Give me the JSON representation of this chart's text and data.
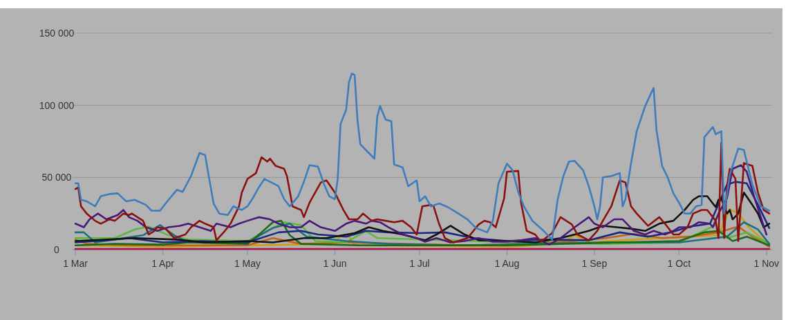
{
  "chart_data": {
    "type": "line",
    "xlim": [
      "--02-28",
      "--11-03"
    ],
    "ylim": [
      0,
      150000
    ],
    "xticks": [
      {
        "value": "--03-01",
        "label": "1 Mar"
      },
      {
        "value": "--04-01",
        "label": "1 Apr"
      },
      {
        "value": "--05-01",
        "label": "1 May"
      },
      {
        "value": "--06-01",
        "label": "1 Jun"
      },
      {
        "value": "--07-01",
        "label": "1 Jul"
      },
      {
        "value": "--08-01",
        "label": "1 Aug"
      },
      {
        "value": "--09-01",
        "label": "1 Sep"
      },
      {
        "value": "--10-01",
        "label": "1 Oct"
      },
      {
        "value": "--11-01",
        "label": "1 Nov"
      }
    ],
    "yticks": [
      {
        "value": 0,
        "label": "0"
      },
      {
        "value": 50000,
        "label": "50 000"
      },
      {
        "value": 100000,
        "label": "100 000"
      },
      {
        "value": 150000,
        "label": "150 000"
      }
    ],
    "grid": "y",
    "line_style": "solid",
    "series": [
      {
        "color": "#b01040",
        "x": [
          "--03-01",
          "--05-01",
          "--07-01",
          "--09-01",
          "--11-02"
        ],
        "values": [
          500,
          500,
          500,
          500,
          500
        ]
      },
      {
        "color": "#c8a018",
        "x": [
          "--03-01",
          "--04-01",
          "--05-01",
          "--06-01",
          "--06-03",
          "--06-06",
          "--06-08",
          "--07-01",
          "--08-01",
          "--08-20",
          "--08-25",
          "--08-30",
          "--09-15",
          "--10-01",
          "--10-15",
          "--10-19",
          "--10-22",
          "--10-26",
          "--11-02"
        ],
        "values": [
          3000,
          2000,
          3000,
          4000,
          10000,
          9000,
          3000,
          null,
          2000,
          4000,
          10000,
          5000,
          7000,
          null,
          10000,
          28000,
          25000,
          15000,
          3000
        ]
      },
      {
        "color": "#c0641c",
        "x": [
          "--03-01",
          "--03-05",
          "--03-20",
          "--04-10",
          "--05-01",
          "--05-10",
          "--05-20",
          "--06-05",
          "--06-25",
          "--07-20",
          "--08-10",
          "--08-25",
          "--09-05",
          "--09-15",
          "--09-25",
          "--10-05",
          "--10-15",
          "--10-22",
          "--10-27",
          "--11-02"
        ],
        "values": [
          7000,
          4000,
          3000,
          null,
          3000,
          8000,
          4000,
          5000,
          4000,
          3000,
          4500,
          6000,
          8000,
          11000,
          8000,
          9000,
          12000,
          16000,
          9000,
          2000
        ]
      },
      {
        "color": "#5cb83c",
        "x": [
          "--03-01",
          "--03-15",
          "--03-22",
          "--03-27",
          "--04-03",
          "--04-10",
          "--05-01",
          "--05-10",
          "--05-14",
          "--05-20",
          "--05-25",
          "--06-05",
          "--06-12",
          "--06-16",
          "--07-05",
          "--08-05",
          "--09-05",
          "--10-01",
          "--10-14",
          "--10-18",
          "--10-25",
          "--11-02"
        ],
        "values": [
          8000,
          8000,
          14000,
          16000,
          10000,
          7000,
          6000,
          15000,
          19000,
          17000,
          6000,
          5000,
          13000,
          8000,
          null,
          5000,
          4000,
          5000,
          17000,
          8000,
          12000,
          4000
        ]
      },
      {
        "color": "#1e6e80",
        "x": [
          "--03-01",
          "--03-04",
          "--03-08",
          "--03-25",
          "--03-31",
          "--04-05",
          "--04-10",
          "--05-01",
          "--05-10",
          "--05-16",
          "--05-22",
          "--06-05",
          "--06-20",
          "--07-15",
          "--08-10",
          "--09-05",
          "--10-01",
          "--10-18",
          "--10-24",
          "--10-29",
          "--11-02"
        ],
        "values": [
          12000,
          12000,
          5000,
          10000,
          17000,
          10000,
          5000,
          5000,
          15000,
          18000,
          9000,
          6000,
          4000,
          3000,
          4000,
          5000,
          5000,
          9000,
          19000,
          14000,
          4000
        ]
      },
      {
        "color": "#1a6a1a",
        "x": [
          "--03-01",
          "--03-15",
          "--04-01",
          "--04-10",
          "--05-01",
          "--05-06",
          "--05-10",
          "--05-13",
          "--05-16",
          "--05-20",
          "--06-10",
          "--07-01",
          "--08-01",
          "--08-20",
          "--09-10",
          "--10-01",
          "--10-10",
          "--10-15",
          "--10-20",
          "--10-25",
          "--11-02"
        ],
        "values": [
          3000,
          4000,
          3500,
          5000,
          4000,
          12000,
          19000,
          20000,
          10000,
          4000,
          3000,
          3000,
          3000,
          4000,
          5000,
          6000,
          12000,
          13000,
          6000,
          9000,
          3000
        ]
      },
      {
        "color": "#1a2a80",
        "x": [
          "--03-01",
          "--03-12",
          "--03-20",
          "--04-01",
          "--04-15",
          "--05-01",
          "--05-12",
          "--05-20",
          "--05-26",
          "--06-05",
          "--06-12",
          "--06-20",
          "--07-01",
          "--07-10",
          "--07-20",
          "--08-01",
          "--08-15",
          "--08-30",
          "--09-10",
          "--09-20",
          "--09-28",
          "--10-05",
          "--10-12",
          "--10-18",
          "--10-21",
          "--10-25",
          "--10-29",
          "--11-02"
        ],
        "values": [
          5000,
          6500,
          8000,
          5000,
          6000,
          5000,
          12000,
          13000,
          10500,
          9000,
          13000,
          12000,
          11500,
          12000,
          8000,
          6000,
          7000,
          6500,
          12000,
          9000,
          12000,
          16000,
          18000,
          45000,
          47000,
          46000,
          31000,
          15000
        ]
      },
      {
        "color": "#111111",
        "x": [
          "--03-01",
          "--03-22",
          "--04-06",
          "--04-16",
          "--05-01",
          "--05-10",
          "--05-21",
          "--05-29",
          "--06-08",
          "--06-13",
          "--06-18",
          "--06-25",
          "--07-03",
          "--07-07",
          "--07-12",
          "--07-17",
          "--07-22",
          "--08-01",
          "--08-11",
          "--08-20",
          "--08-30",
          "--09-04",
          "--09-09",
          "--09-14",
          "--09-19",
          "--09-24",
          "--09-29",
          "--10-03",
          "--10-06",
          "--10-08",
          "--10-11",
          "--10-14",
          "--10-15",
          "--10-16",
          "--10-18",
          "--10-19",
          "--10-20",
          "--10-22",
          "--10-24",
          "--10-27",
          "--10-29",
          "--10-31",
          "--11-02"
        ],
        "values": [
          6000,
          8000,
          7000,
          5000,
          6000,
          5000,
          8000,
          8000,
          11500,
          15500,
          13000,
          10500,
          6500,
          10500,
          16500,
          10500,
          6500,
          6000,
          5000,
          8000,
          13000,
          16500,
          15500,
          14500,
          13000,
          18000,
          20000,
          27500,
          34500,
          37000,
          37000,
          29500,
          34500,
          35500,
          25000,
          27500,
          21000,
          25000,
          39500,
          31000,
          25000,
          15500,
          18000
        ]
      },
      {
        "color": "#4a1878",
        "x": [
          "--03-01",
          "--03-04",
          "--03-06",
          "--03-09",
          "--03-12",
          "--03-16",
          "--03-18",
          "--03-20",
          "--03-23",
          "--03-26",
          "--03-30",
          "--04-03",
          "--04-07",
          "--04-10",
          "--04-14",
          "--04-18",
          "--04-20",
          "--04-25",
          "--04-28",
          "--05-01",
          "--05-05",
          "--05-09",
          "--05-12",
          "--05-16",
          "--05-20",
          "--05-23",
          "--05-27",
          "--06-01",
          "--06-05",
          "--06-08",
          "--06-12",
          "--06-14",
          "--06-17",
          "--06-20",
          "--06-25",
          "--06-30",
          "--07-03",
          "--07-07",
          "--07-12",
          "--07-17",
          "--07-22",
          "--07-27",
          "--08-01",
          "--08-06",
          "--08-11",
          "--08-16",
          "--08-20",
          "--08-25",
          "--08-30",
          "--09-01",
          "--09-04",
          "--09-08",
          "--09-11",
          "--09-15",
          "--09-19",
          "--09-22",
          "--09-26",
          "--09-29",
          "--10-01",
          "--10-05",
          "--10-08",
          "--10-12",
          "--10-13",
          "--10-15",
          "--10-18",
          "--10-20",
          "--10-23",
          "--10-25",
          "--10-28",
          "--11-01"
        ],
        "values": [
          18000,
          15500,
          21000,
          25000,
          21000,
          24000,
          27500,
          22500,
          20000,
          15500,
          13000,
          15500,
          16500,
          18000,
          15500,
          13000,
          18000,
          15500,
          18000,
          20000,
          22500,
          21000,
          18000,
          15500,
          15500,
          20000,
          15500,
          13000,
          18000,
          20000,
          18000,
          20000,
          19000,
          15500,
          10500,
          8000,
          5500,
          8000,
          5000,
          6000,
          8000,
          5500,
          5500,
          6500,
          8000,
          3500,
          8000,
          15500,
          22500,
          18000,
          15500,
          21000,
          21000,
          13000,
          10500,
          13000,
          10500,
          13000,
          15500,
          15500,
          19000,
          18000,
          15500,
          25000,
          35500,
          56000,
          58500,
          54000,
          34500,
          10500
        ]
      },
      {
        "color": "#8b1010",
        "x": [
          "--03-01",
          "--03-02",
          "--03-03",
          "--03-05",
          "--03-08",
          "--03-10",
          "--03-13",
          "--03-15",
          "--03-18",
          "--03-20",
          "--03-21",
          "--03-25",
          "--03-27",
          "--03-29",
          "--03-30",
          "--04-02",
          "--04-05",
          "--04-09",
          "--04-11",
          "--04-14",
          "--04-16",
          "--04-19",
          "--04-20",
          "--04-23",
          "--04-25",
          "--04-28",
          "--04-29",
          "--05-01",
          "--05-04",
          "--05-06",
          "--05-08",
          "--05-09",
          "--05-11",
          "--05-14",
          "--05-15",
          "--05-17",
          "--05-20",
          "--05-21",
          "--05-23",
          "--05-27",
          "--05-29",
          "--06-01",
          "--06-04",
          "--06-06",
          "--06-09",
          "--06-11",
          "--06-14",
          "--06-16",
          "--06-19",
          "--06-22",
          "--06-25",
          "--06-28",
          "--06-30",
          "--07-02",
          "--07-05",
          "--07-06",
          "--07-08",
          "--07-10",
          "--07-13",
          "--07-18",
          "--07-22",
          "--07-24",
          "--07-26",
          "--07-28",
          "--07-31",
          "--08-01",
          "--08-05",
          "--08-06",
          "--08-08",
          "--08-11",
          "--08-13",
          "--08-17",
          "--08-20",
          "--08-24",
          "--08-26",
          "--08-30",
          "--09-02",
          "--09-04",
          "--09-07",
          "--09-10",
          "--09-12",
          "--09-14",
          "--09-16",
          "--09-20",
          "--09-24",
          "--09-26",
          "--09-29",
          "--10-01",
          "--10-04",
          "--10-06",
          "--10-09",
          "--10-11",
          "--10-14",
          "--10-15",
          "--10-16",
          "--10-17",
          "--10-18",
          "--10-19",
          "--10-21",
          "--10-22",
          "--10-24",
          "--10-27",
          "--10-29",
          "--10-31",
          "--11-02"
        ],
        "values": [
          42000,
          43000,
          30000,
          25000,
          20000,
          18000,
          21000,
          20000,
          25000,
          24000,
          25000,
          20000,
          10500,
          13000,
          15500,
          14500,
          8000,
          10500,
          15500,
          20000,
          18000,
          15500,
          6500,
          13000,
          18000,
          30000,
          39500,
          49000,
          53000,
          64000,
          61000,
          63000,
          58000,
          56000,
          51000,
          30000,
          27500,
          22500,
          32500,
          46500,
          48000,
          39500,
          27500,
          21000,
          21000,
          25000,
          20000,
          21000,
          20000,
          19000,
          20000,
          15500,
          10500,
          30000,
          31000,
          30000,
          17500,
          8000,
          5000,
          8000,
          17500,
          20000,
          19000,
          15500,
          35500,
          54000,
          54500,
          32500,
          13000,
          10500,
          5500,
          11500,
          22500,
          17500,
          10500,
          6500,
          13000,
          20000,
          30000,
          48000,
          46500,
          30000,
          25000,
          16500,
          22500,
          18000,
          10500,
          10500,
          15500,
          25000,
          27500,
          27500,
          20000,
          8000,
          74000,
          8000,
          44000,
          56000,
          49000,
          6000,
          60000,
          58000,
          39500,
          27500,
          25000
        ]
      },
      {
        "color": "#3f7cbc",
        "x": [
          "--03-01",
          "--03-02",
          "--03-03",
          "--03-05",
          "--03-08",
          "--03-10",
          "--03-13",
          "--03-16",
          "--03-19",
          "--03-22",
          "--03-26",
          "--03-28",
          "--03-31",
          "--04-03",
          "--04-06",
          "--04-08",
          "--04-11",
          "--04-14",
          "--04-16",
          "--04-17",
          "--04-19",
          "--04-21",
          "--04-24",
          "--04-26",
          "--04-29",
          "--05-01",
          "--05-03",
          "--05-05",
          "--05-07",
          "--05-10",
          "--05-12",
          "--05-14",
          "--05-16",
          "--05-19",
          "--05-21",
          "--05-23",
          "--05-26",
          "--05-28",
          "--05-30",
          "--06-01",
          "--06-02",
          "--06-03",
          "--06-05",
          "--06-06",
          "--06-07",
          "--06-08",
          "--06-09",
          "--06-10",
          "--06-13",
          "--06-15",
          "--06-16",
          "--06-17",
          "--06-19",
          "--06-21",
          "--06-22",
          "--06-25",
          "--06-27",
          "--06-30",
          "--07-01",
          "--07-03",
          "--07-05",
          "--07-08",
          "--07-11",
          "--07-14",
          "--07-18",
          "--07-21",
          "--07-25",
          "--07-27",
          "--07-29",
          "--08-01",
          "--08-03",
          "--08-05",
          "--08-07",
          "--08-10",
          "--08-14",
          "--08-16",
          "--08-17",
          "--08-19",
          "--08-21",
          "--08-23",
          "--08-25",
          "--08-28",
          "--08-30",
          "--09-01",
          "--09-02",
          "--09-03",
          "--09-04",
          "--09-07",
          "--09-10",
          "--09-11",
          "--09-12",
          "--09-14",
          "--09-16",
          "--09-19",
          "--09-21",
          "--09-22",
          "--09-23",
          "--09-25",
          "--09-27",
          "--09-29",
          "--10-01",
          "--10-03",
          "--10-05",
          "--10-07",
          "--10-09",
          "--10-10",
          "--10-13",
          "--10-14",
          "--10-16",
          "--10-17",
          "--10-19",
          "--10-22",
          "--10-24",
          "--10-27",
          "--10-30",
          "--11-02"
        ],
        "values": [
          46000,
          46000,
          34500,
          33500,
          30000,
          37000,
          38500,
          39000,
          33500,
          34500,
          31000,
          27000,
          27000,
          34500,
          41500,
          40000,
          51000,
          67000,
          65500,
          54000,
          32000,
          25000,
          24000,
          30000,
          27500,
          30000,
          36000,
          43000,
          49000,
          46000,
          44000,
          35000,
          30000,
          37000,
          47000,
          58500,
          57500,
          46000,
          37000,
          35000,
          49000,
          87000,
          97000,
          116000,
          122000,
          121000,
          90000,
          73000,
          67000,
          63000,
          92000,
          99500,
          90000,
          89000,
          59000,
          57000,
          44000,
          48000,
          33500,
          37000,
          30000,
          32000,
          29500,
          26000,
          21000,
          15000,
          12000,
          20000,
          46000,
          59500,
          55000,
          40000,
          30000,
          20000,
          13000,
          9000,
          7000,
          35000,
          51000,
          61000,
          61500,
          55000,
          44000,
          30000,
          21000,
          30000,
          50000,
          51000,
          53000,
          30000,
          35000,
          60000,
          82000,
          99500,
          108000,
          112000,
          83000,
          58000,
          50000,
          39000,
          32500,
          25000,
          25000,
          30000,
          31000,
          78000,
          85000,
          80000,
          82000,
          25000,
          52000,
          70000,
          69000,
          45000,
          30000,
          27000
        ]
      }
    ]
  }
}
